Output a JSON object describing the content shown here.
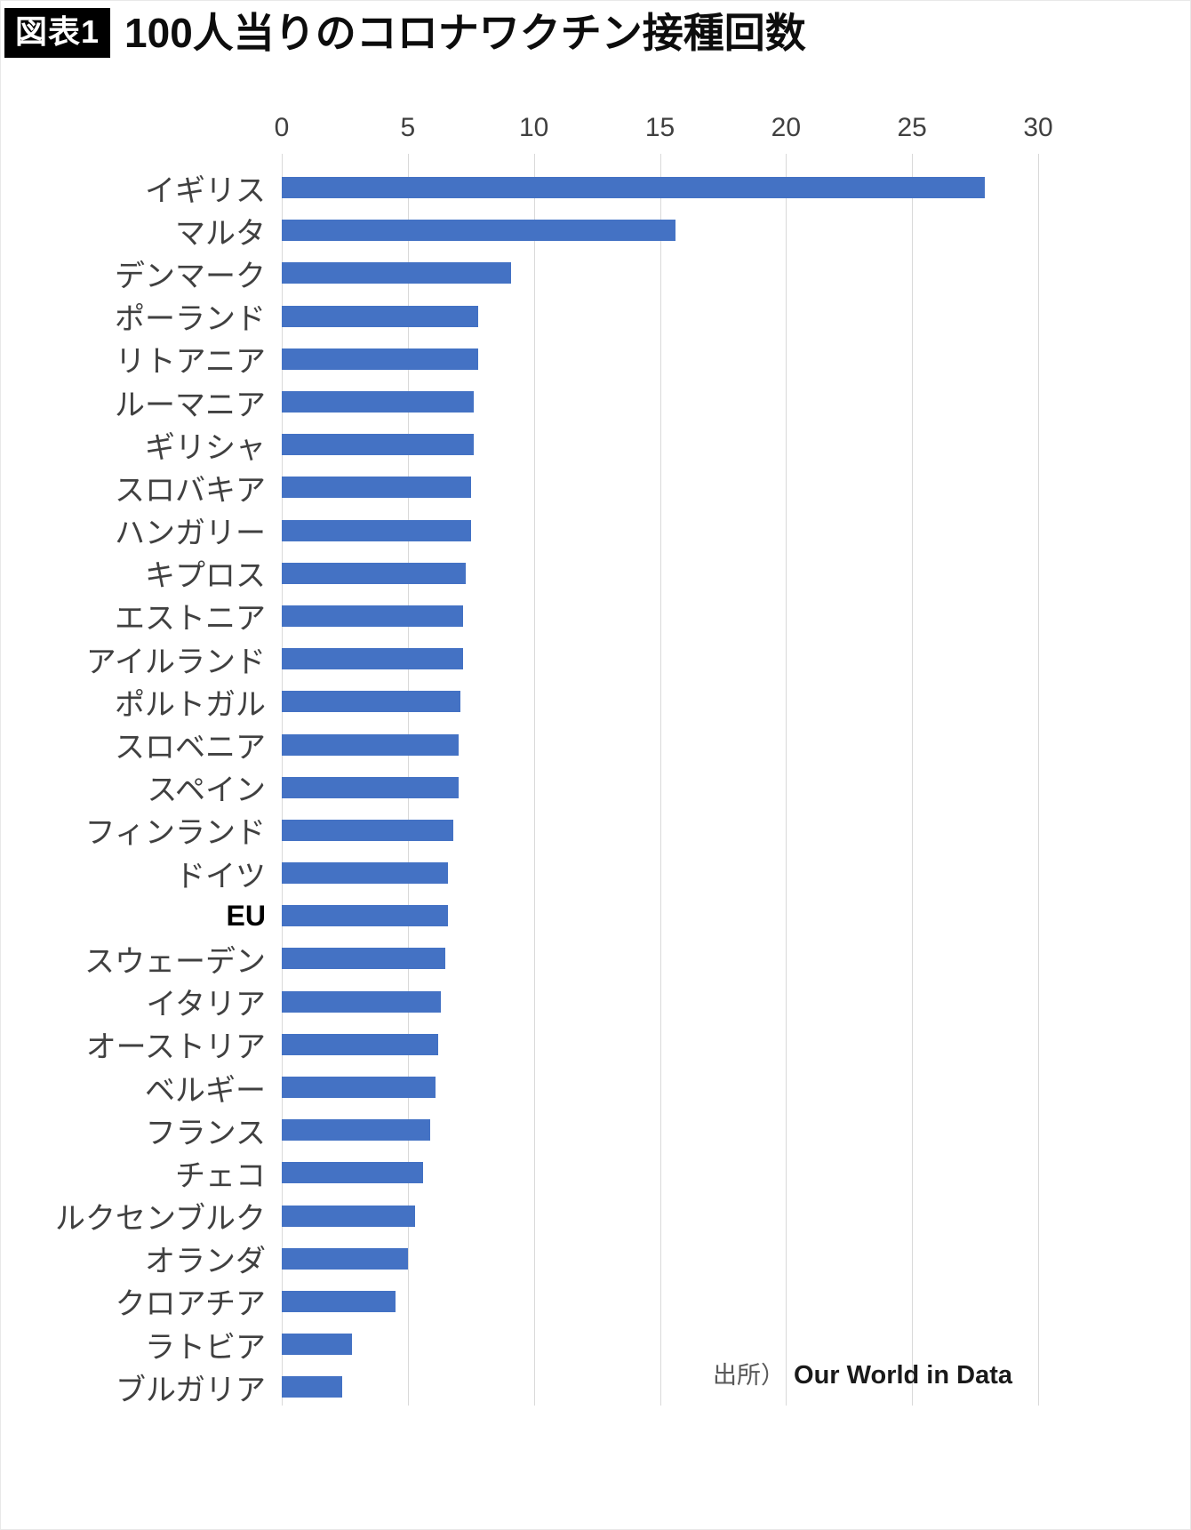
{
  "header": {
    "badge": "図表1",
    "title": "100人当りのコロナワクチン接種回数"
  },
  "source": {
    "prefix": "出所）",
    "name": "Our World in Data"
  },
  "chart_data": {
    "type": "bar",
    "orientation": "horizontal",
    "title": "100人当りのコロナワクチン接種回数",
    "xlabel": "",
    "ylabel": "",
    "xlim": [
      0,
      30
    ],
    "xticks": [
      0,
      5,
      10,
      15,
      20,
      25,
      30
    ],
    "grid": true,
    "legend": false,
    "bar_color": "#4472c4",
    "categories": [
      "イギリス",
      "マルタ",
      "デンマーク",
      "ポーランド",
      "リトアニア",
      "ルーマニア",
      "ギリシャ",
      "スロバキア",
      "ハンガリー",
      "キプロス",
      "エストニア",
      "アイルランド",
      "ポルトガル",
      "スロベニア",
      "スペイン",
      "フィンランド",
      "ドイツ",
      "EU",
      "スウェーデン",
      "イタリア",
      "オーストリア",
      "ベルギー",
      "フランス",
      "チェコ",
      "ルクセンブルク",
      "オランダ",
      "クロアチア",
      "ラトビア",
      "ブルガリア"
    ],
    "values": [
      27.9,
      15.6,
      9.1,
      7.8,
      7.8,
      7.6,
      7.6,
      7.5,
      7.5,
      7.3,
      7.2,
      7.2,
      7.1,
      7.0,
      7.0,
      6.8,
      6.6,
      6.6,
      6.5,
      6.3,
      6.2,
      6.1,
      5.9,
      5.6,
      5.3,
      5.0,
      4.5,
      2.8,
      2.4
    ]
  }
}
